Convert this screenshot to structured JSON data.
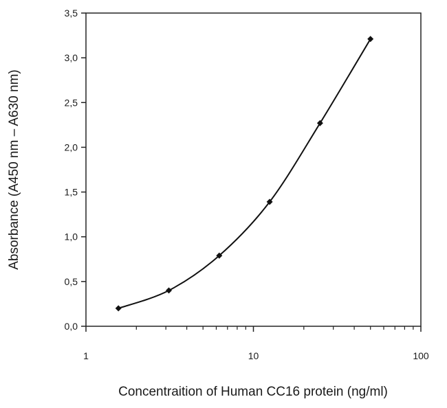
{
  "chart_data": {
    "type": "line",
    "title": "",
    "xlabel": "Concentraition of Human CC16 protein (ng/ml)",
    "ylabel": "Absorbance (A450 nm – A630 nm)",
    "x_scale": "log",
    "xlim": [
      1,
      100
    ],
    "ylim": [
      0,
      3.5
    ],
    "x_ticks": [
      {
        "value": 1,
        "label": "1"
      },
      {
        "value": 10,
        "label": "10"
      },
      {
        "value": 100,
        "label": "100"
      }
    ],
    "y_ticks": [
      {
        "value": 0,
        "label": "0,0"
      },
      {
        "value": 0.5,
        "label": "0,5"
      },
      {
        "value": 1.0,
        "label": "1,0"
      },
      {
        "value": 1.5,
        "label": "1,5"
      },
      {
        "value": 2.0,
        "label": "2,0"
      },
      {
        "value": 2.5,
        "label": "2,5"
      },
      {
        "value": 3.0,
        "label": "3,0"
      },
      {
        "value": 3.5,
        "label": "3,5"
      }
    ],
    "grid": false,
    "legend": "none",
    "series": [
      {
        "x": [
          1.5625,
          3.125,
          6.25,
          12.5,
          25,
          50
        ],
        "y": [
          0.2,
          0.4,
          0.79,
          1.39,
          2.27,
          3.21
        ],
        "color": "#111111",
        "marker": "diamond"
      }
    ]
  }
}
